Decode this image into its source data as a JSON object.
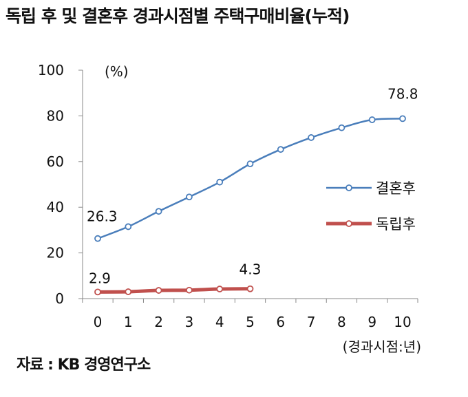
{
  "title": "독립 후 및 결혼후 경과시점별 주택구매비율(누적)",
  "source": "자료 : KB 경영연구소",
  "chart_data": {
    "type": "line",
    "title": "독립 후 및 결혼후 경과시점별 주택구매비율(누적)",
    "ylabel": "(%)",
    "xlabel": "(경과시점:년)",
    "ylim": [
      0,
      100
    ],
    "yticks": [
      0,
      20,
      40,
      60,
      80,
      100
    ],
    "x": [
      0,
      1,
      2,
      3,
      4,
      5,
      6,
      7,
      8,
      9,
      10
    ],
    "grid": false,
    "legend_position": "right",
    "series": [
      {
        "name": "결혼후",
        "color": "#4a7ebb",
        "x": [
          0,
          1,
          2,
          3,
          4,
          5,
          6,
          7,
          8,
          9,
          10
        ],
        "values": [
          26.3,
          31.5,
          38.2,
          44.5,
          51.0,
          59.0,
          65.3,
          70.5,
          74.8,
          78.3,
          78.8
        ]
      },
      {
        "name": "독립후",
        "color": "#c0504d",
        "x": [
          0,
          1,
          2,
          3,
          4,
          5
        ],
        "values": [
          2.9,
          3.0,
          3.6,
          3.7,
          4.2,
          4.3
        ]
      }
    ],
    "annotations": [
      {
        "series": 0,
        "index": 0,
        "text": "26.3"
      },
      {
        "series": 0,
        "index": 10,
        "text": "78.8"
      },
      {
        "series": 1,
        "index": 0,
        "text": "2.9"
      },
      {
        "series": 1,
        "index": 5,
        "text": "4.3"
      }
    ]
  }
}
